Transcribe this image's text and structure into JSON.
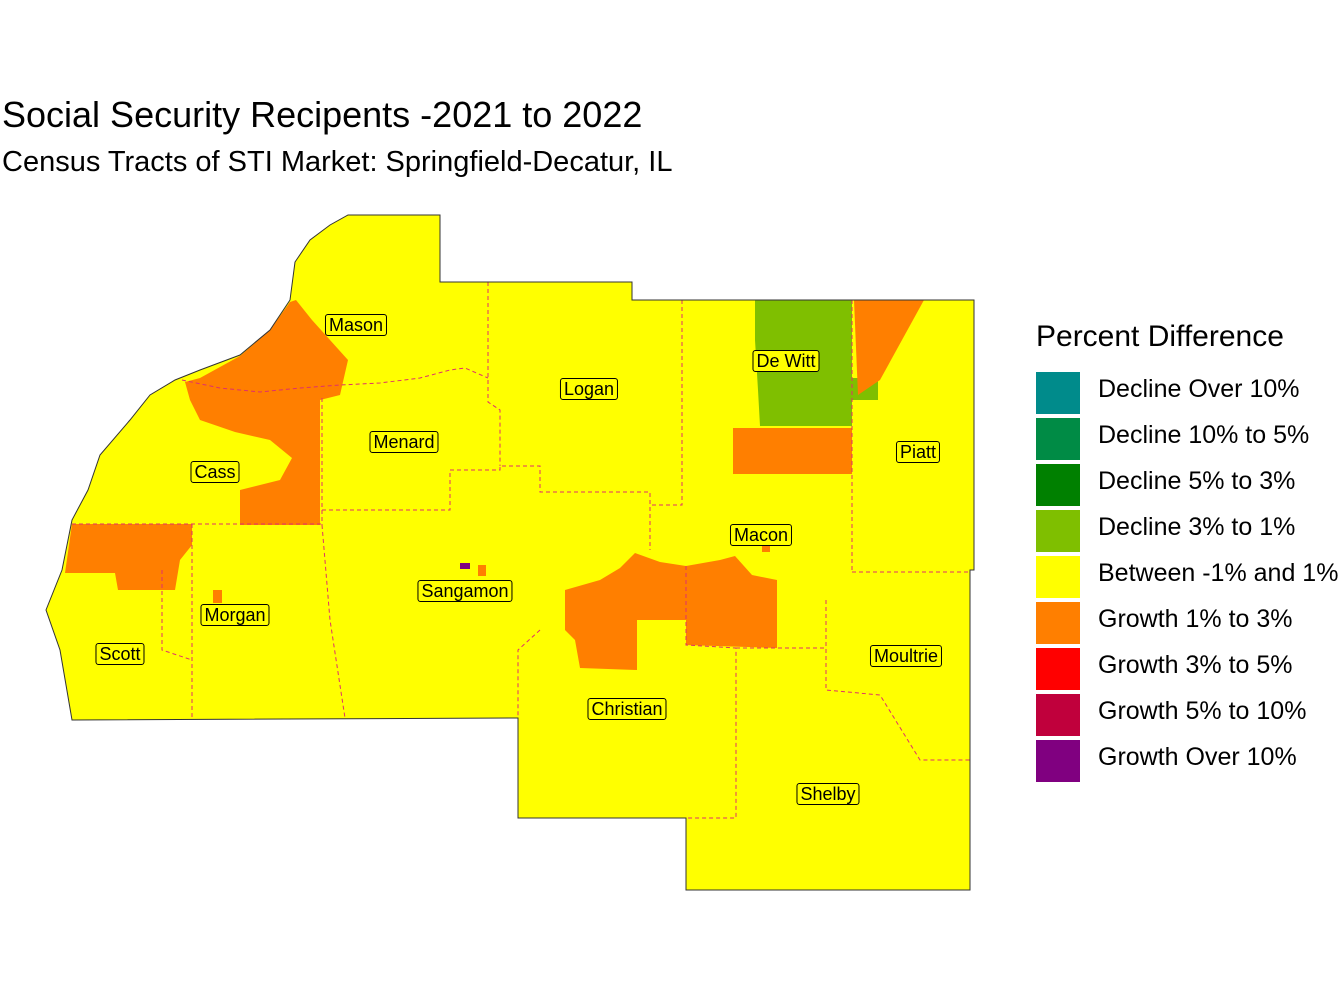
{
  "title": "Social Security Recipents -2021 to 2022",
  "subtitle": "Census Tracts of STI Market: Springfield-Decatur, IL",
  "legend": {
    "title": "Percent Difference",
    "items": [
      {
        "label": "Decline Over 10%",
        "color": "#008b8b"
      },
      {
        "label": "Decline 10% to 5%",
        "color": "#008b45"
      },
      {
        "label": "Decline 5% to 3%",
        "color": "#008000"
      },
      {
        "label": "Decline 3% to 1%",
        "color": "#7fbf00"
      },
      {
        "label": "Between -1% and 1%",
        "color": "#ffff00"
      },
      {
        "label": "Growth 1% to 3%",
        "color": "#ff7f00"
      },
      {
        "label": "Growth 3% to 5%",
        "color": "#ff0000"
      },
      {
        "label": "Growth 5% to 10%",
        "color": "#c0003c"
      },
      {
        "label": "Growth Over 10%",
        "color": "#800080"
      }
    ]
  },
  "counties": {
    "mason": "Mason",
    "logan": "Logan",
    "dewitt": "De Witt",
    "menard": "Menard",
    "cass": "Cass",
    "piatt": "Piatt",
    "macon": "Macon",
    "sangamon": "Sangamon",
    "morgan": "Morgan",
    "scott": "Scott",
    "moultrie": "Moultrie",
    "christian": "Christian",
    "shelby": "Shelby"
  },
  "colors": {
    "boundary": "#e0306a"
  }
}
